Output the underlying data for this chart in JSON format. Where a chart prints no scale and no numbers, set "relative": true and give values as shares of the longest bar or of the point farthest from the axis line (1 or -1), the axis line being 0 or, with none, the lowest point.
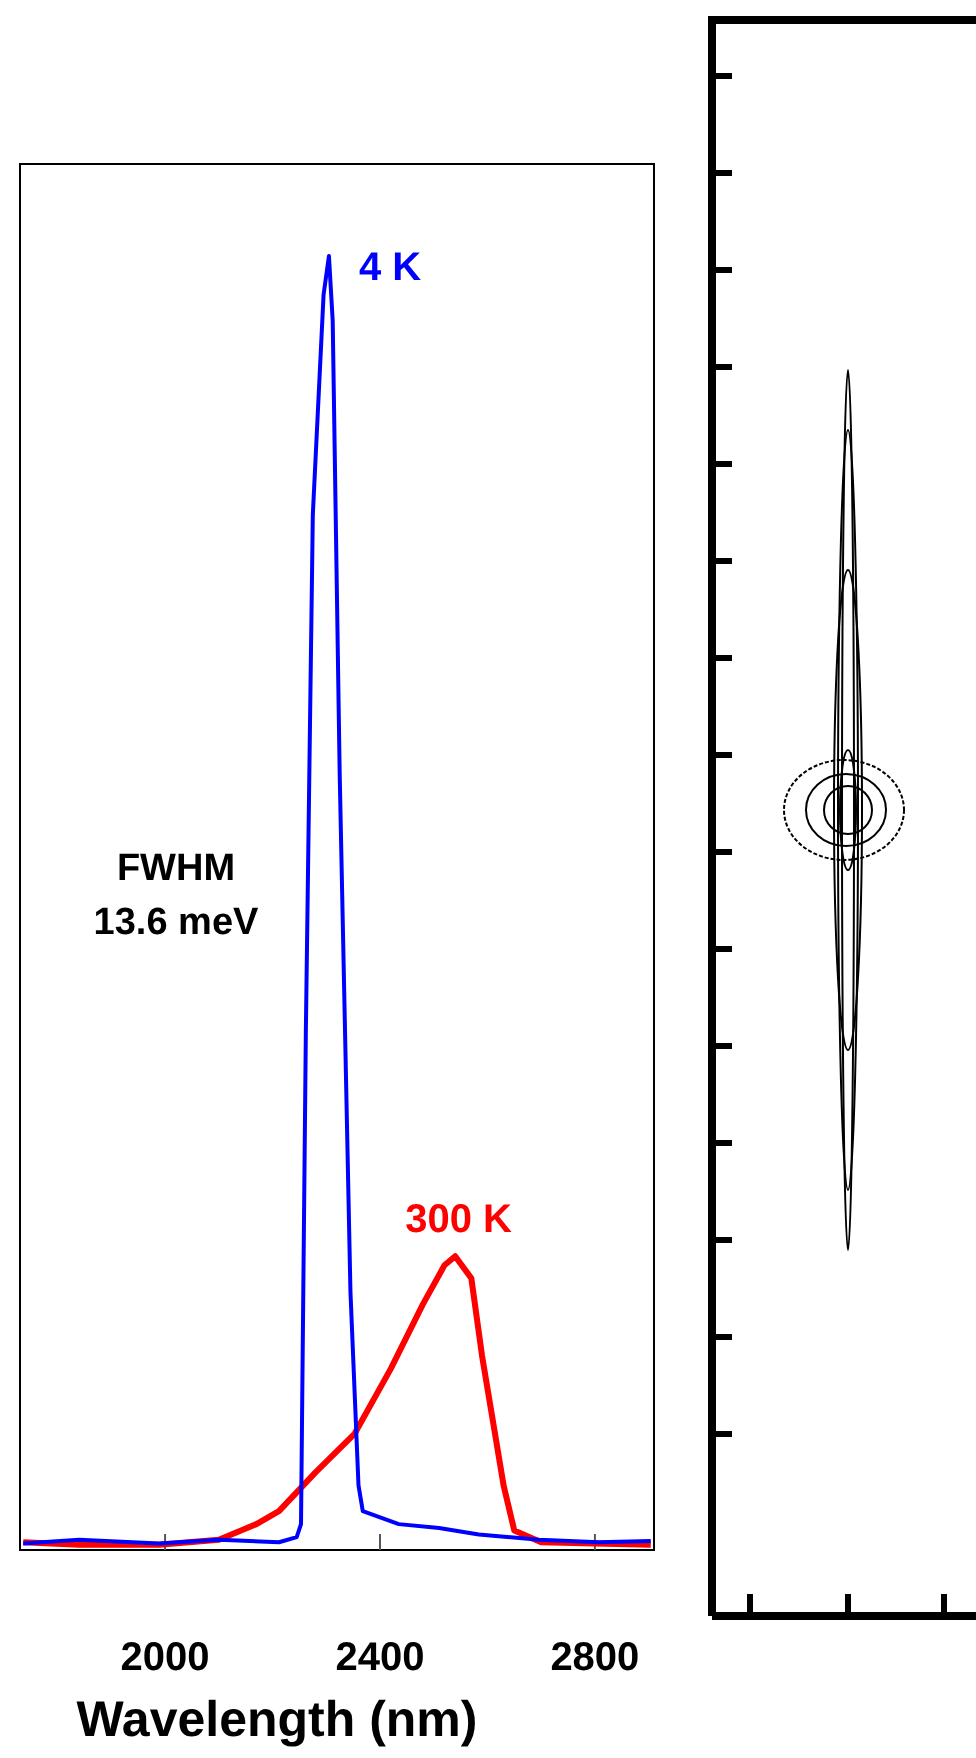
{
  "chart_data": {
    "type": "line",
    "relative": true,
    "xlabel": "Wavelength (nm)",
    "xlim": [
      1730,
      2910
    ],
    "xticks": [
      2000,
      2400,
      2800
    ],
    "grid": false,
    "marker": "none",
    "line_style": "solid",
    "annotations": [
      "FWHM",
      "13.6 meV"
    ],
    "series": [
      {
        "name": "300 K",
        "color": "#ff0000",
        "x": [
          1736,
          1840,
          1989,
          2100,
          2170,
          2212,
          2280,
          2353,
          2420,
          2480,
          2520,
          2540,
          2570,
          2590,
          2610,
          2630,
          2650,
          2700,
          2800,
          2904
        ],
        "values": [
          0.006,
          0.004,
          0.004,
          0.008,
          0.02,
          0.03,
          0.06,
          0.09,
          0.14,
          0.19,
          0.22,
          0.227,
          0.21,
          0.15,
          0.1,
          0.05,
          0.015,
          0.006,
          0.005,
          0.004
        ]
      },
      {
        "name": "4 K",
        "color": "#0000ff",
        "x": [
          1736,
          1840,
          1989,
          2100,
          2212,
          2245,
          2253,
          2262,
          2275,
          2295,
          2305,
          2312,
          2325,
          2345,
          2360,
          2368,
          2435,
          2510,
          2584,
          2696,
          2807,
          2904
        ],
        "values": [
          0.005,
          0.008,
          0.005,
          0.008,
          0.006,
          0.01,
          0.02,
          0.4,
          0.8,
          0.97,
          1.0,
          0.95,
          0.6,
          0.2,
          0.05,
          0.03,
          0.02,
          0.017,
          0.012,
          0.008,
          0.006,
          0.007
        ]
      }
    ]
  }
}
